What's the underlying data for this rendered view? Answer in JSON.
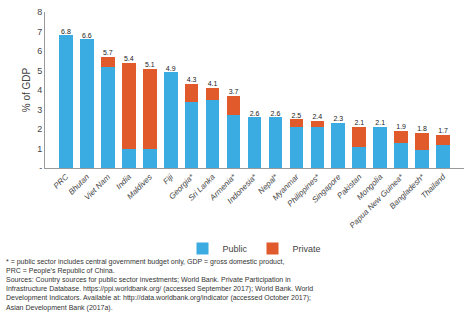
{
  "chart_data": {
    "type": "bar",
    "stacked": true,
    "categories": [
      "PRC",
      "Bhutan",
      "Viet Nam",
      "India",
      "Maldives",
      "Fiji",
      "Georgia*",
      "Sri Lanka",
      "Armenia*",
      "Indonesia*",
      "Nepal*",
      "Myanmar",
      "Philippines*",
      "Singapore",
      "Pakistan",
      "Mongolia",
      "Papua New Guinea*",
      "Bangladesh*",
      "Thailand"
    ],
    "series": [
      {
        "name": "Public",
        "color": "#3AACE2",
        "values": [
          6.8,
          6.6,
          5.2,
          1.0,
          1.0,
          4.9,
          3.4,
          3.5,
          2.7,
          2.6,
          2.6,
          2.1,
          2.1,
          2.3,
          1.1,
          2.1,
          1.3,
          0.9,
          1.2
        ]
      },
      {
        "name": "Private",
        "color": "#E05A2B",
        "values": [
          0.0,
          0.0,
          0.5,
          4.4,
          4.1,
          0.0,
          0.9,
          0.6,
          1.0,
          0.0,
          0.0,
          0.4,
          0.3,
          0.0,
          1.0,
          0.0,
          0.6,
          0.9,
          0.5
        ]
      }
    ],
    "totals": [
      6.8,
      6.6,
      5.7,
      5.4,
      5.1,
      4.9,
      4.3,
      4.1,
      3.7,
      2.6,
      2.6,
      2.5,
      2.4,
      2.3,
      2.1,
      2.1,
      1.9,
      1.8,
      1.7
    ],
    "ylabel": "% of GDP",
    "ylim": [
      0,
      8
    ],
    "yticks": [
      {
        "value": 0,
        "label": "-"
      },
      1,
      2,
      3,
      4,
      5,
      6,
      7,
      8
    ],
    "grid": false,
    "legend": "bottom",
    "footnotes": [
      "* = public sector includes central government budget only, GDP = gross domestic product,",
      "PRC = People’s Republic of China.",
      "Sources: Country sources for public sector investments; World Bank. Private Participation in",
      "Infrastructure Database. https://ppi.worldbank.org/ (accessed September 2017); World Bank. World",
      "Development Indicators. Available at: http://data.worldbank.org/indicator (accessed October 2017);",
      "Asian Development Bank (2017a)."
    ]
  }
}
